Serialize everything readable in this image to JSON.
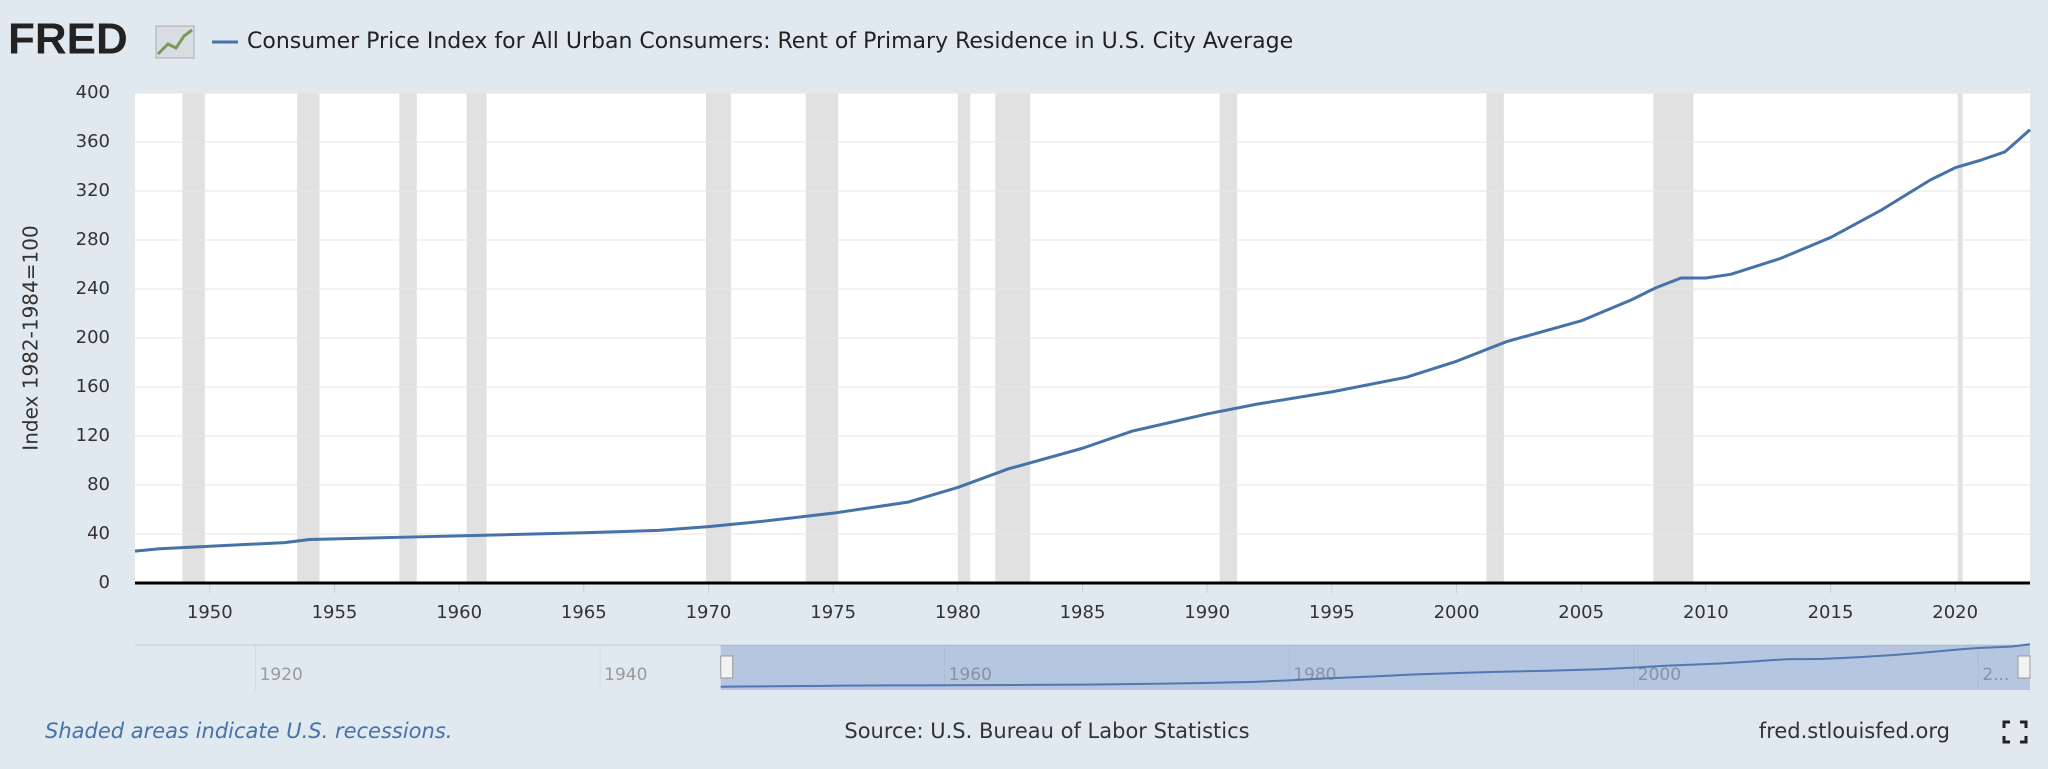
{
  "logo": "FRED",
  "chart_data": {
    "type": "line",
    "y_label": "Index 1982-1984=100",
    "series": [
      {
        "name": "Consumer Price Index for All Urban Consumers: Rent of Primary Residence in U.S. City Average",
        "color": "#4572a7",
        "x": [
          1947,
          1948,
          1950,
          1953,
          1954,
          1958,
          1960,
          1965,
          1968,
          1970,
          1972,
          1975,
          1978,
          1980,
          1982,
          1985,
          1987,
          1990,
          1992,
          1995,
          1998,
          2000,
          2002,
          2005,
          2007,
          2008,
          2009,
          2010,
          2011,
          2013,
          2015,
          2017,
          2019,
          2020,
          2021,
          2022,
          2023
        ],
        "values": [
          26,
          28,
          30,
          33,
          35.5,
          37.5,
          38.5,
          41,
          43,
          46,
          50,
          57,
          66,
          78,
          93,
          110,
          124,
          138,
          146,
          156,
          168,
          181,
          197,
          214,
          231,
          241,
          249,
          249,
          252,
          265,
          282,
          304,
          329,
          339,
          345,
          352,
          370
        ]
      }
    ],
    "recessions": [
      [
        1948.9,
        1949.8
      ],
      [
        1953.5,
        1954.4
      ],
      [
        1957.6,
        1958.3
      ],
      [
        1960.3,
        1961.1
      ],
      [
        1969.9,
        1970.9
      ],
      [
        1973.9,
        1975.2
      ],
      [
        1980.0,
        1980.5
      ],
      [
        1981.5,
        1982.9
      ],
      [
        1990.5,
        1991.2
      ],
      [
        2001.2,
        2001.9
      ],
      [
        2007.9,
        2009.5
      ],
      [
        2020.1,
        2020.3
      ]
    ],
    "xlim": [
      1947,
      2023
    ],
    "xticks": [
      1950,
      1955,
      1960,
      1965,
      1970,
      1975,
      1980,
      1985,
      1990,
      1995,
      2000,
      2005,
      2010,
      2015,
      2020
    ],
    "ylim": [
      0,
      400
    ],
    "yticks": [
      0,
      40,
      80,
      120,
      160,
      200,
      240,
      280,
      320,
      360,
      400
    ],
    "grid": true,
    "navigator": {
      "xlim": [
        1913,
        2023
      ],
      "xticks": [
        1920,
        1940,
        1960,
        1980,
        2000,
        {
          "value": 2020,
          "label": "2..."
        }
      ]
    },
    "note": "Shaded areas indicate U.S. recessions.",
    "source": "Source: U.S. Bureau of Labor Statistics",
    "site": "fred.stlouisfed.org"
  }
}
